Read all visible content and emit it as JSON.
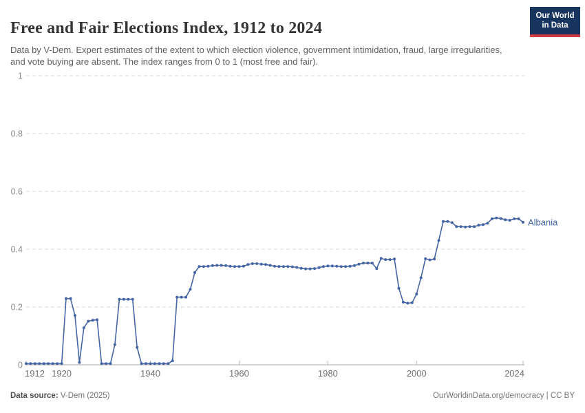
{
  "header": {
    "title": "Free and Fair Elections Index, 1912 to 2024",
    "subtitle": "Data by V-Dem. Expert estimates of the extent to which election violence, government intimidation, fraud, large irregularities, and vote buying are absent. The index ranges from 0 to 1 (most free and fair).",
    "logo": {
      "line1": "Our World",
      "line2": "in Data"
    }
  },
  "footer": {
    "source_label": "Data source:",
    "source_value": "V-Dem (2025)",
    "credit": "OurWorldinData.org/democracy | CC BY"
  },
  "colors": {
    "series_blue": "#4464A3",
    "gridline": "#dadada",
    "axis_line": "#a8a8a8",
    "tick_mark": "#b8b8b8",
    "y_label": "#8a8a8a",
    "x_label": "#6f6f6f",
    "logo_navy": "#17355f",
    "logo_red": "#d13b45"
  },
  "chart_data": {
    "type": "line",
    "title": "Free and Fair Elections Index, 1912 to 2024",
    "xlabel": "",
    "ylabel": "",
    "xlim": [
      1912,
      2024
    ],
    "ylim": [
      0,
      1
    ],
    "xticks": [
      1912,
      1920,
      1940,
      1960,
      1980,
      2000,
      2024
    ],
    "yticks": [
      0,
      0.2,
      0.4,
      0.6,
      0.8,
      1
    ],
    "grid": "horizontal-dashed",
    "legend": "end-of-line-label",
    "series": [
      {
        "name": "Albania",
        "end_label": "Albania",
        "color": "#4464A3",
        "x": [
          1912,
          1913,
          1914,
          1915,
          1916,
          1917,
          1918,
          1919,
          1920,
          1921,
          1922,
          1923,
          1924,
          1925,
          1926,
          1927,
          1928,
          1929,
          1930,
          1931,
          1932,
          1933,
          1934,
          1935,
          1936,
          1937,
          1938,
          1939,
          1940,
          1941,
          1942,
          1943,
          1944,
          1945,
          1946,
          1947,
          1948,
          1949,
          1950,
          1951,
          1952,
          1953,
          1954,
          1955,
          1956,
          1957,
          1958,
          1959,
          1960,
          1961,
          1962,
          1963,
          1964,
          1965,
          1966,
          1967,
          1968,
          1969,
          1970,
          1971,
          1972,
          1973,
          1974,
          1975,
          1976,
          1977,
          1978,
          1979,
          1980,
          1981,
          1982,
          1983,
          1984,
          1985,
          1986,
          1987,
          1988,
          1989,
          1990,
          1991,
          1992,
          1993,
          1994,
          1995,
          1996,
          1997,
          1998,
          1999,
          2000,
          2001,
          2002,
          2003,
          2004,
          2005,
          2006,
          2007,
          2008,
          2009,
          2010,
          2011,
          2012,
          2013,
          2014,
          2015,
          2016,
          2017,
          2018,
          2019,
          2020,
          2021,
          2022,
          2023,
          2024
        ],
        "values": [
          0.004,
          0.004,
          0.004,
          0.004,
          0.004,
          0.004,
          0.004,
          0.004,
          0.004,
          0.229,
          0.229,
          0.171,
          0.008,
          0.128,
          0.151,
          0.154,
          0.156,
          0.004,
          0.004,
          0.004,
          0.07,
          0.227,
          0.227,
          0.227,
          0.227,
          0.06,
          0.004,
          0.004,
          0.004,
          0.004,
          0.004,
          0.004,
          0.004,
          0.014,
          0.234,
          0.234,
          0.234,
          0.261,
          0.319,
          0.34,
          0.34,
          0.341,
          0.343,
          0.344,
          0.344,
          0.343,
          0.341,
          0.34,
          0.34,
          0.341,
          0.347,
          0.35,
          0.35,
          0.348,
          0.347,
          0.344,
          0.341,
          0.34,
          0.34,
          0.34,
          0.339,
          0.337,
          0.334,
          0.332,
          0.332,
          0.333,
          0.336,
          0.34,
          0.342,
          0.342,
          0.341,
          0.34,
          0.34,
          0.341,
          0.343,
          0.348,
          0.352,
          0.352,
          0.352,
          0.333,
          0.368,
          0.364,
          0.364,
          0.366,
          0.265,
          0.217,
          0.213,
          0.215,
          0.245,
          0.301,
          0.367,
          0.363,
          0.366,
          0.43,
          0.496,
          0.496,
          0.492,
          0.478,
          0.478,
          0.477,
          0.478,
          0.478,
          0.483,
          0.485,
          0.49,
          0.505,
          0.508,
          0.506,
          0.502,
          0.5,
          0.505,
          0.505,
          0.493
        ]
      }
    ]
  }
}
